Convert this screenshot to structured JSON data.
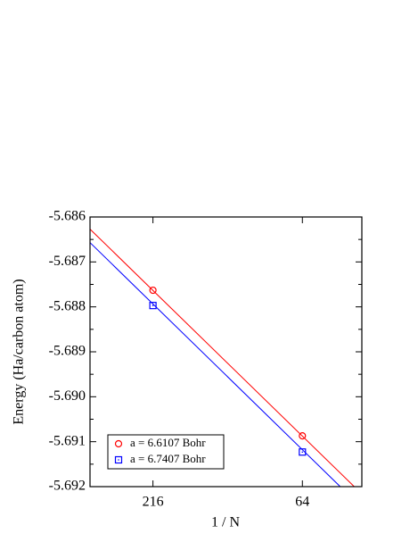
{
  "chart_data": {
    "type": "scatter",
    "x_label": "1 / N",
    "y_label": "Energy (Ha/carbon atom)",
    "xlim": [
      0,
      0.02
    ],
    "ylim": [
      -5.692,
      -5.686
    ],
    "xticks": [
      {
        "value": 0.00463,
        "label": "216"
      },
      {
        "value": 0.015625,
        "label": "64"
      }
    ],
    "yticks": [
      -5.686,
      -5.687,
      -5.688,
      -5.689,
      {
        "value": -5.69,
        "label": "-5.690"
      },
      -5.691,
      -5.692
    ],
    "yminorticks": [
      -5.6865,
      -5.6875,
      -5.6885,
      -5.6895,
      -5.6905,
      -5.6915
    ],
    "series": [
      {
        "name": "a = 6.6107 Bohr",
        "color": "#ff0000",
        "marker": "circle",
        "x": [
          0.00463,
          0.015625
        ],
        "values": [
          -5.68763,
          -5.69087
        ]
      },
      {
        "name": "a = 6.7407 Bohr",
        "color": "#0000ff",
        "marker": "square",
        "x": [
          0.00463,
          0.015625
        ],
        "values": [
          -5.68797,
          -5.69123
        ]
      }
    ],
    "fit_lines": [
      {
        "color": "#ff0000",
        "x": [
          0,
          0.01944
        ],
        "values": [
          -5.68627,
          -5.692
        ]
      },
      {
        "color": "#0000ff",
        "x": [
          0,
          0.01841
        ],
        "values": [
          -5.68657,
          -5.692
        ]
      }
    ],
    "legend": "lower left"
  }
}
